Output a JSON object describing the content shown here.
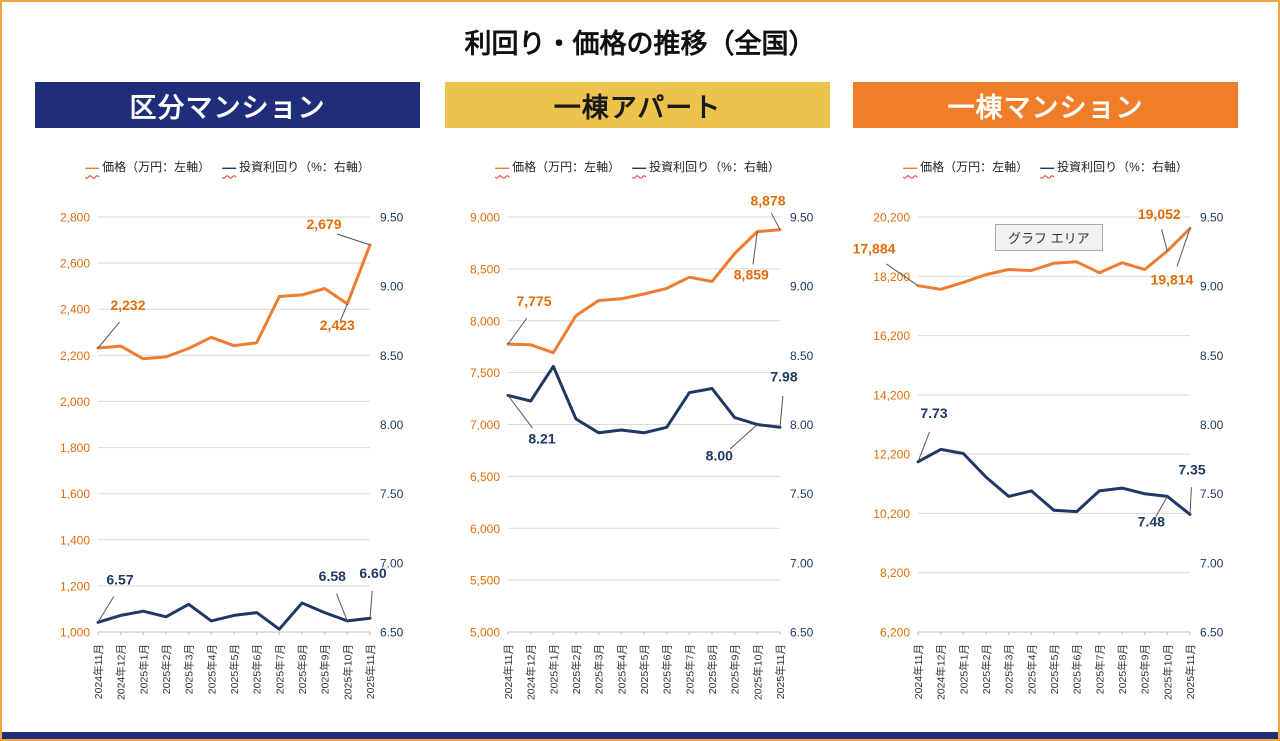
{
  "page": {
    "title": "利回り・価格の推移（全国）",
    "tooltip": "グラフ エリア",
    "colors": {
      "price_line": "#ed7d31",
      "yield_line": "#1f3864",
      "price_label": "#e36c09",
      "yield_label": "#1f3864",
      "grid": "#d9d9d9",
      "axis_line": "#bfbfbf",
      "x_label": "#333333",
      "frame": "#f2a73d",
      "footer_bar": "#1f2d7a"
    }
  },
  "legend": {
    "marker": "—",
    "price_label": "価格（万円：左軸）",
    "yield_label": "投資利回り（%：右軸）"
  },
  "chart_data": [
    {
      "type": "line",
      "title": "区分マンション",
      "header_color": "#1f2d7a",
      "header_text_color": "#ffffff",
      "categories": [
        "2024年11月",
        "2024年12月",
        "2025年1月",
        "2025年2月",
        "2025年3月",
        "2025年4月",
        "2025年5月",
        "2025年6月",
        "2025年7月",
        "2025年8月",
        "2025年9月",
        "2025年10月",
        "2025年11月"
      ],
      "left_axis": {
        "min": 1000,
        "max": 2800,
        "step": 200,
        "label": "価格（万円）"
      },
      "right_axis": {
        "min": 6.5,
        "max": 9.5,
        "step": 0.5,
        "label": "投資利回り（%）"
      },
      "series": [
        {
          "name": "価格（万円：左軸）",
          "axis": "left",
          "color": "#ed7d31",
          "label_color": "#e36c09",
          "values": [
            2232,
            2240,
            2185,
            2193,
            2230,
            2278,
            2242,
            2255,
            2455,
            2462,
            2490,
            2423,
            2679
          ],
          "annotations": [
            {
              "i": 0,
              "label": "2,232",
              "dx": 30,
              "dy": -38
            },
            {
              "i": 11,
              "label": "2,423",
              "dx": -10,
              "dy": 26
            },
            {
              "i": 12,
              "label": "2,679",
              "dx": -46,
              "dy": -16
            }
          ]
        },
        {
          "name": "投資利回り（%：右軸）",
          "axis": "right",
          "color": "#1f3864",
          "label_color": "#1f3864",
          "values": [
            6.57,
            6.62,
            6.65,
            6.61,
            6.7,
            6.58,
            6.62,
            6.64,
            6.52,
            6.71,
            6.64,
            6.58,
            6.6
          ],
          "annotations": [
            {
              "i": 0,
              "label": "6.57",
              "dx": 22,
              "dy": -38
            },
            {
              "i": 11,
              "label": "6.58",
              "dx": -15,
              "dy": -40
            },
            {
              "i": 12,
              "label": "6.60",
              "dx": 3,
              "dy": -40
            }
          ]
        }
      ]
    },
    {
      "type": "line",
      "title": "一棟アパート",
      "header_color": "#ecc44d",
      "header_text_color": "#1a1a1a",
      "categories": [
        "2024年11月",
        "2024年12月",
        "2025年1月",
        "2025年2月",
        "2025年3月",
        "2025年4月",
        "2025年5月",
        "2025年6月",
        "2025年7月",
        "2025年8月",
        "2025年9月",
        "2025年10月",
        "2025年11月"
      ],
      "left_axis": {
        "min": 5000,
        "max": 9000,
        "step": 500,
        "label": "価格（万円）"
      },
      "right_axis": {
        "min": 6.5,
        "max": 9.5,
        "step": 0.5,
        "label": "投資利回り（%）"
      },
      "series": [
        {
          "name": "価格（万円：左軸）",
          "axis": "left",
          "color": "#ed7d31",
          "label_color": "#e36c09",
          "values": [
            7775,
            7768,
            7692,
            8050,
            8195,
            8212,
            8258,
            8312,
            8420,
            8378,
            8648,
            8859,
            8878
          ],
          "annotations": [
            {
              "i": 0,
              "label": "7,775",
              "dx": 26,
              "dy": -38
            },
            {
              "i": 11,
              "label": "8,859",
              "dx": -6,
              "dy": 48
            },
            {
              "i": 12,
              "label": "8,878",
              "dx": -12,
              "dy": -24
            }
          ]
        },
        {
          "name": "投資利回り（%：右軸）",
          "axis": "right",
          "color": "#1f3864",
          "label_color": "#1f3864",
          "values": [
            8.21,
            8.17,
            8.42,
            8.04,
            7.94,
            7.96,
            7.94,
            7.98,
            8.23,
            8.26,
            8.05,
            8.0,
            7.98
          ],
          "annotations": [
            {
              "i": 0,
              "label": "8.21",
              "dx": 34,
              "dy": 48
            },
            {
              "i": 11,
              "label": "8.00",
              "dx": -38,
              "dy": 36
            },
            {
              "i": 12,
              "label": "7.98",
              "dx": 4,
              "dy": -46
            }
          ]
        }
      ]
    },
    {
      "type": "line",
      "title": "一棟マンション",
      "header_color": "#f07d29",
      "header_text_color": "#ffffff",
      "categories": [
        "2024年11月",
        "2024年12月",
        "2025年1月",
        "2025年2月",
        "2025年3月",
        "2025年4月",
        "2025年5月",
        "2025年6月",
        "2025年7月",
        "2025年8月",
        "2025年9月",
        "2025年10月",
        "2025年11月"
      ],
      "left_axis": {
        "min": 6200,
        "max": 20200,
        "step": 2000,
        "label": "価格（万円）"
      },
      "right_axis": {
        "min": 6.5,
        "max": 9.5,
        "step": 0.5,
        "label": "投資利回り（%）"
      },
      "series": [
        {
          "name": "価格（万円：左軸）",
          "axis": "left",
          "color": "#ed7d31",
          "label_color": "#e36c09",
          "values": [
            17884,
            17762,
            17995,
            18256,
            18430,
            18395,
            18640,
            18690,
            18320,
            18660,
            18430,
            19052,
            19814
          ],
          "annotations": [
            {
              "i": 0,
              "label": "17,884",
              "dx": -44,
              "dy": -32
            },
            {
              "i": 11,
              "label": "19,052",
              "dx": -8,
              "dy": -32
            },
            {
              "i": 12,
              "label": "19,814",
              "dx": -18,
              "dy": 56
            }
          ]
        },
        {
          "name": "投資利回り（%：右軸）",
          "axis": "right",
          "color": "#1f3864",
          "label_color": "#1f3864",
          "values": [
            7.73,
            7.82,
            7.79,
            7.62,
            7.48,
            7.52,
            7.38,
            7.37,
            7.52,
            7.54,
            7.5,
            7.48,
            7.35
          ],
          "annotations": [
            {
              "i": 0,
              "label": "7.73",
              "dx": 16,
              "dy": -44
            },
            {
              "i": 11,
              "label": "7.48",
              "dx": -16,
              "dy": 30
            },
            {
              "i": 12,
              "label": "7.35",
              "dx": 2,
              "dy": -40
            }
          ]
        }
      ]
    }
  ]
}
